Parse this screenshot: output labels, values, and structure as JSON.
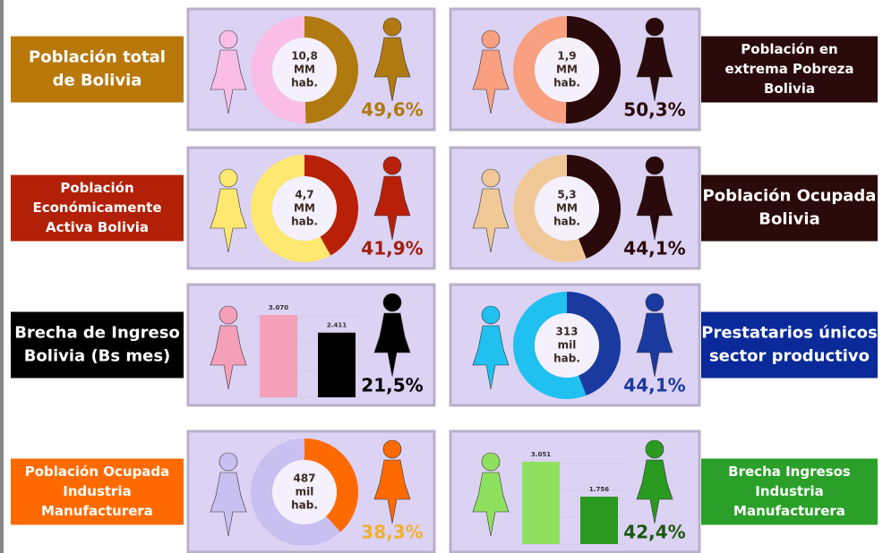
{
  "panels": [
    {
      "label_lines": [
        "Población total",
        "de Bolivia"
      ],
      "label_bg": "#b8780a",
      "kind": "donut",
      "center_lines": [
        "10,8",
        "MM",
        "hab."
      ],
      "percent": 49.6,
      "percent_label": "49,6%",
      "light": "#f9bde6",
      "dark": "#b07a10",
      "percent_color": "#b07a10"
    },
    {
      "label_lines": [
        "Población en",
        "extrema Pobreza",
        "Bolivia"
      ],
      "label_bg": "#2a0a0a",
      "kind": "donut",
      "center_lines": [
        "1,9",
        "MM",
        "hab."
      ],
      "percent": 50.3,
      "percent_label": "50,3%",
      "light": "#f8a080",
      "dark": "#2a0a0a",
      "percent_color": "#2a0a0a"
    },
    {
      "label_lines": [
        "Población",
        "Económicamente",
        "Activa Bolivia"
      ],
      "label_bg": "#b22008",
      "kind": "donut",
      "center_lines": [
        "4,7",
        "MM",
        "hab."
      ],
      "percent": 41.9,
      "percent_label": "41,9%",
      "light": "#ffe870",
      "dark": "#b82008",
      "percent_color": "#a02010"
    },
    {
      "label_lines": [
        "Población Ocupada",
        "Bolivia"
      ],
      "label_bg": "#2a0a0a",
      "kind": "donut",
      "center_lines": [
        "5,3",
        "MM",
        "hab."
      ],
      "percent": 44.1,
      "percent_label": "44,1%",
      "light": "#f0c898",
      "dark": "#2a0a0a",
      "percent_color": "#2a0a0a"
    },
    {
      "label_lines": [
        "Brecha de Ingreso",
        "Bolivia (Bs mes)"
      ],
      "label_bg": "#000000",
      "kind": "bars",
      "bars": [
        {
          "value": 3070,
          "label": "3.070",
          "color": "#f4a0b8"
        },
        {
          "value": 2411,
          "label": "2.411",
          "color": "#000000"
        }
      ],
      "percent": 21.5,
      "percent_label": "21,5%",
      "light": "#f4a0b8",
      "dark": "#000000",
      "percent_color": "#000000"
    },
    {
      "label_lines": [
        "Prestatarios únicos",
        "sector productivo"
      ],
      "label_bg": "#0a2a9a",
      "kind": "donut",
      "center_lines": [
        "313",
        "mil",
        "hab."
      ],
      "percent": 44.1,
      "percent_label": "44,1%",
      "light": "#20c0f0",
      "dark": "#1a3aa0",
      "percent_color": "#1a3aa0"
    },
    {
      "label_lines": [
        "Población Ocupada",
        "Industria",
        "Manufacturera"
      ],
      "label_bg": "#ff6a00",
      "kind": "donut",
      "center_lines": [
        "487",
        "mil",
        "hab."
      ],
      "percent": 38.3,
      "percent_label": "38,3%",
      "light": "#c8c0f0",
      "dark": "#ff6a00",
      "percent_color": "#f0b030"
    },
    {
      "label_lines": [
        "Brecha Ingresos",
        "Industria",
        "Manufacturera"
      ],
      "label_bg": "#2aa02a",
      "kind": "bars",
      "bars": [
        {
          "value": 3051,
          "label": "3.051",
          "color": "#90e060"
        },
        {
          "value": 1756,
          "label": "1.756",
          "color": "#2a9a20"
        }
      ],
      "percent": 42.4,
      "percent_label": "42,4%",
      "light": "#90e060",
      "dark": "#2a9a20",
      "percent_color": "#1a5a10"
    }
  ]
}
